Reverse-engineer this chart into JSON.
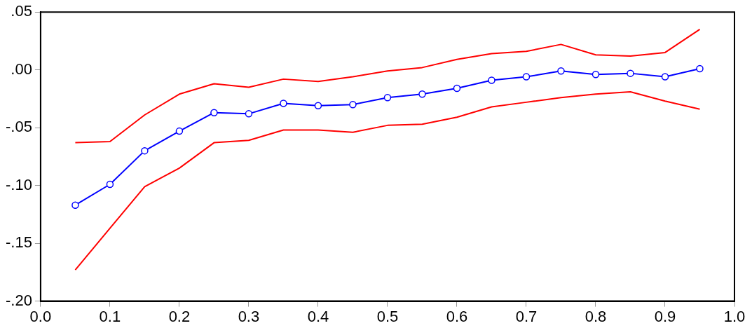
{
  "chart_data": {
    "type": "line",
    "x": [
      0.05,
      0.1,
      0.15,
      0.2,
      0.25,
      0.3,
      0.35,
      0.4,
      0.45,
      0.5,
      0.55,
      0.6,
      0.65,
      0.7,
      0.75,
      0.8,
      0.85,
      0.9,
      0.95
    ],
    "series": [
      {
        "color": "#0000ff",
        "marker": "circle",
        "values": [
          -0.117,
          -0.099,
          -0.07,
          -0.053,
          -0.037,
          -0.038,
          -0.029,
          -0.031,
          -0.03,
          -0.024,
          -0.021,
          -0.016,
          -0.009,
          -0.006,
          -0.001,
          -0.004,
          -0.003,
          -0.006,
          0.001
        ]
      },
      {
        "color": "#ff0000",
        "marker": "none",
        "values": [
          -0.063,
          -0.062,
          -0.039,
          -0.021,
          -0.012,
          -0.015,
          -0.008,
          -0.01,
          -0.006,
          -0.001,
          0.002,
          0.009,
          0.014,
          0.016,
          0.022,
          0.013,
          0.012,
          0.015,
          0.035
        ]
      },
      {
        "color": "#ff0000",
        "marker": "none",
        "values": [
          -0.173,
          -0.137,
          -0.101,
          -0.085,
          -0.063,
          -0.061,
          -0.052,
          -0.052,
          -0.054,
          -0.048,
          -0.047,
          -0.041,
          -0.032,
          -0.028,
          -0.024,
          -0.021,
          -0.019,
          -0.027,
          -0.034
        ]
      }
    ],
    "xlim": [
      0,
      1
    ],
    "xticks": [
      {
        "value": 0,
        "label": "0.0"
      },
      {
        "value": 0.1,
        "label": "0.1"
      },
      {
        "value": 0.2,
        "label": "0.2"
      },
      {
        "value": 0.3,
        "label": "0.3"
      },
      {
        "value": 0.4,
        "label": "0.4"
      },
      {
        "value": 0.5,
        "label": "0.5"
      },
      {
        "value": 0.6,
        "label": "0.6"
      },
      {
        "value": 0.7,
        "label": "0.7"
      },
      {
        "value": 0.8,
        "label": "0.8"
      },
      {
        "value": 0.9,
        "label": "0.9"
      },
      {
        "value": 1,
        "label": "1.0"
      }
    ],
    "ylim": [
      -0.2,
      0.05
    ],
    "yticks": [
      {
        "value": -0.2,
        "label": "-.20"
      },
      {
        "value": -0.15,
        "label": "-.15"
      },
      {
        "value": -0.1,
        "label": "-.10"
      },
      {
        "value": -0.05,
        "label": "-.05"
      },
      {
        "value": 0,
        "label": ".00"
      },
      {
        "value": 0.05,
        "label": ".05"
      }
    ],
    "grid": false,
    "legend": false,
    "line_style": "solid"
  }
}
